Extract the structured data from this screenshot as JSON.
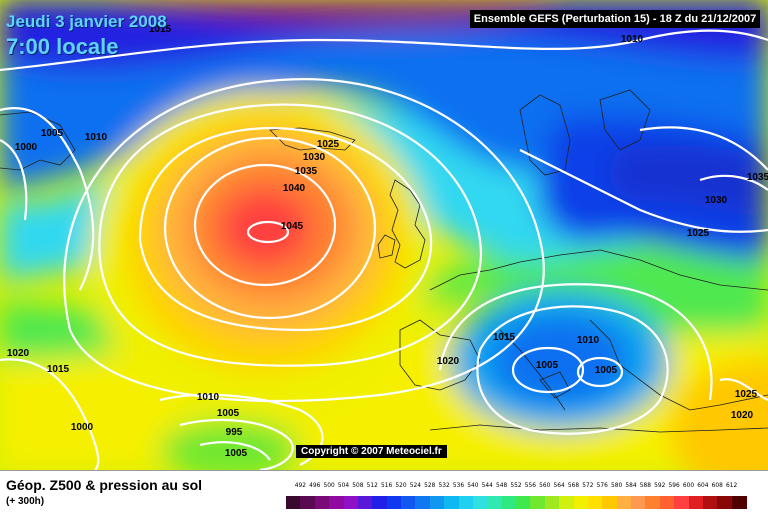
{
  "header": {
    "date": "Jeudi 3 janvier 2008",
    "time": "7:00 locale",
    "run": "Ensemble GEFS (Perturbation 15)  -  18 Z du 21/12/2007"
  },
  "map": {
    "copyright": "Copyright © 2007 Meteociel.fr",
    "pressure_labels": [
      {
        "text": "1015"
      },
      {
        "text": "1010"
      },
      {
        "text": "1005"
      },
      {
        "text": "1010"
      },
      {
        "text": "1000"
      },
      {
        "text": "1025"
      },
      {
        "text": "1030"
      },
      {
        "text": "1035"
      },
      {
        "text": "1040"
      },
      {
        "text": "1045"
      },
      {
        "text": "1035"
      },
      {
        "text": "1030"
      },
      {
        "text": "1025"
      },
      {
        "text": "1020"
      },
      {
        "text": "1015"
      },
      {
        "text": "1020"
      },
      {
        "text": "1015"
      },
      {
        "text": "1010"
      },
      {
        "text": "1005"
      },
      {
        "text": "1005"
      },
      {
        "text": "1010"
      },
      {
        "text": "1005"
      },
      {
        "text": "1000"
      },
      {
        "text": "995"
      },
      {
        "text": "1005"
      },
      {
        "text": "1025"
      },
      {
        "text": "1020"
      }
    ]
  },
  "footer": {
    "title": "Géop. Z500 & pression au sol",
    "subtitle": "(+ 300h)"
  },
  "legend": {
    "ticks": [
      "492",
      "496",
      "500",
      "504",
      "508",
      "512",
      "516",
      "520",
      "524",
      "528",
      "532",
      "536",
      "540",
      "544",
      "548",
      "552",
      "556",
      "560",
      "564",
      "568",
      "572",
      "576",
      "580",
      "584",
      "588",
      "592",
      "596",
      "600",
      "604",
      "608",
      "612"
    ],
    "colors": [
      "#3a0a2e",
      "#5a0a50",
      "#7a0a78",
      "#900aa0",
      "#9010c8",
      "#5818d8",
      "#2020e8",
      "#1038f0",
      "#1058f0",
      "#1078f0",
      "#1098f0",
      "#10b8f0",
      "#20d0f0",
      "#30e0e0",
      "#30e8b0",
      "#30e880",
      "#40e850",
      "#70e830",
      "#a0e820",
      "#d0f010",
      "#f0f000",
      "#ffe000",
      "#ffc800",
      "#ffb040",
      "#ff9850",
      "#ff8030",
      "#ff6030",
      "#ff4040",
      "#e02020",
      "#b01010",
      "#880808",
      "#500000"
    ]
  }
}
